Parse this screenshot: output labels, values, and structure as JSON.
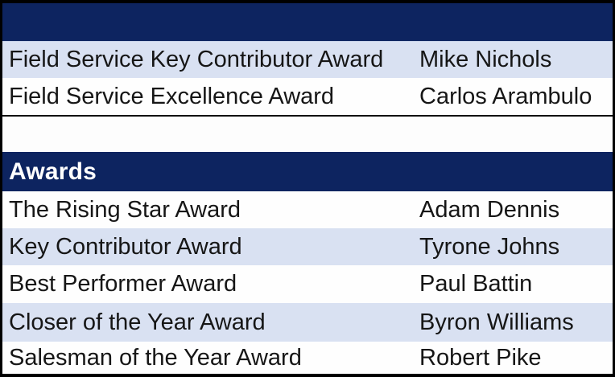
{
  "theme": {
    "header_navy": "#0d2460",
    "row_lavender": "#d9e1f2",
    "row_white": "#fefefe",
    "text_color": "#161616",
    "header_text_color": "#ffffff",
    "outer_border": "#000000"
  },
  "field_service_table": {
    "header_label": "",
    "rows": [
      {
        "award": "Field Service Key Contributor Award",
        "recipient": "Mike Nichols"
      },
      {
        "award": "Field Service Excellence Award",
        "recipient": "Carlos Arambulo"
      }
    ]
  },
  "awards_table": {
    "header_label": "Awards",
    "rows": [
      {
        "award": "The Rising Star Award",
        "recipient": "Adam Dennis"
      },
      {
        "award": "Key Contributor Award",
        "recipient": "Tyrone Johns"
      },
      {
        "award": "Best Performer Award",
        "recipient": "Paul Battin"
      },
      {
        "award": "Closer of the Year Award",
        "recipient": "Byron Williams"
      },
      {
        "award": "Salesman of the Year Award",
        "recipient": "Robert Pike"
      }
    ]
  }
}
